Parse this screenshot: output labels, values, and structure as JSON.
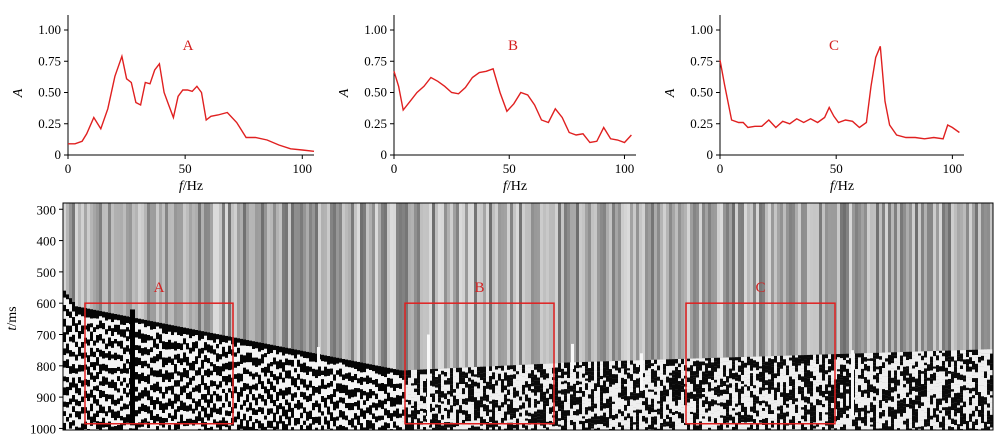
{
  "colors": {
    "line": "#e02020",
    "box": "#e02020",
    "axis": "#000000"
  },
  "chart_data": [
    {
      "type": "line",
      "title": "A",
      "xlabel_italic": "f",
      "xlabel_unit": "/Hz",
      "ylabel": "A",
      "xlim": [
        0,
        105
      ],
      "ylim": [
        0,
        1.12
      ],
      "xticks": [
        0,
        50,
        100
      ],
      "yticks": [
        0,
        0.25,
        0.5,
        0.75,
        1.0
      ],
      "ytick_labels": [
        "0",
        "0.25",
        "0.50",
        "0.75",
        "1.00"
      ],
      "x": [
        0,
        3,
        6,
        8,
        11,
        14,
        17,
        20,
        23,
        25,
        27,
        29,
        31,
        33,
        35,
        37,
        39,
        41,
        43,
        45,
        47,
        49,
        51,
        53,
        55,
        57,
        59,
        61,
        64,
        68,
        72,
        76,
        80,
        85,
        90,
        95,
        100,
        105
      ],
      "y": [
        0.09,
        0.09,
        0.11,
        0.17,
        0.3,
        0.21,
        0.37,
        0.63,
        0.79,
        0.61,
        0.58,
        0.42,
        0.4,
        0.58,
        0.57,
        0.68,
        0.73,
        0.5,
        0.4,
        0.3,
        0.47,
        0.52,
        0.52,
        0.51,
        0.55,
        0.5,
        0.28,
        0.31,
        0.32,
        0.34,
        0.26,
        0.14,
        0.14,
        0.12,
        0.08,
        0.05,
        0.04,
        0.03
      ]
    },
    {
      "type": "line",
      "title": "B",
      "xlabel_italic": "f",
      "xlabel_unit": "/Hz",
      "ylabel": "A",
      "xlim": [
        0,
        105
      ],
      "ylim": [
        0,
        1.12
      ],
      "xticks": [
        0,
        50,
        100
      ],
      "yticks": [
        0,
        0.25,
        0.5,
        0.75,
        1.0
      ],
      "ytick_labels": [
        "0",
        "0.25",
        "0.50",
        "0.75",
        "1.00"
      ],
      "x": [
        0,
        2,
        4,
        7,
        10,
        13,
        16,
        19,
        22,
        25,
        28,
        31,
        34,
        37,
        40,
        43,
        46,
        49,
        52,
        55,
        58,
        61,
        64,
        67,
        70,
        73,
        76,
        79,
        82,
        85,
        88,
        91,
        94,
        97,
        100,
        103
      ],
      "y": [
        0.67,
        0.55,
        0.36,
        0.43,
        0.5,
        0.55,
        0.62,
        0.59,
        0.55,
        0.5,
        0.49,
        0.54,
        0.62,
        0.66,
        0.67,
        0.69,
        0.5,
        0.35,
        0.41,
        0.5,
        0.48,
        0.4,
        0.28,
        0.26,
        0.37,
        0.3,
        0.18,
        0.16,
        0.17,
        0.1,
        0.11,
        0.22,
        0.13,
        0.12,
        0.1,
        0.16
      ]
    },
    {
      "type": "line",
      "title": "C",
      "xlabel_italic": "f",
      "xlabel_unit": "/Hz",
      "ylabel": "A",
      "xlim": [
        0,
        105
      ],
      "ylim": [
        0,
        1.12
      ],
      "xticks": [
        0,
        50,
        100
      ],
      "yticks": [
        0,
        0.25,
        0.5,
        0.75,
        1.0
      ],
      "ytick_labels": [
        "0",
        "0.25",
        "0.50",
        "0.75",
        "1.00"
      ],
      "x": [
        0,
        2,
        5,
        8,
        10,
        12,
        15,
        18,
        21,
        24,
        27,
        30,
        33,
        36,
        39,
        42,
        45,
        47,
        49,
        51,
        54,
        57,
        60,
        63,
        65,
        67,
        69,
        71,
        73,
        76,
        80,
        84,
        88,
        92,
        96,
        98,
        100,
        103
      ],
      "y": [
        0.76,
        0.56,
        0.28,
        0.26,
        0.26,
        0.22,
        0.23,
        0.23,
        0.28,
        0.22,
        0.27,
        0.25,
        0.29,
        0.26,
        0.29,
        0.26,
        0.3,
        0.38,
        0.31,
        0.26,
        0.28,
        0.27,
        0.22,
        0.26,
        0.55,
        0.78,
        0.87,
        0.43,
        0.24,
        0.16,
        0.14,
        0.14,
        0.13,
        0.14,
        0.13,
        0.24,
        0.22,
        0.18
      ]
    },
    {
      "type": "heatmap",
      "description": "seismic record section",
      "ylabel_italic": "t",
      "ylabel_unit": "/ms",
      "ylim": [
        280,
        1005
      ],
      "yticks": [
        300,
        400,
        500,
        600,
        700,
        800,
        900,
        1000
      ],
      "regions": [
        {
          "label": "A",
          "t_start": 600,
          "t_end": 985
        },
        {
          "label": "B",
          "t_start": 600,
          "t_end": 985
        },
        {
          "label": "C",
          "t_start": 600,
          "t_end": 985
        }
      ]
    }
  ]
}
